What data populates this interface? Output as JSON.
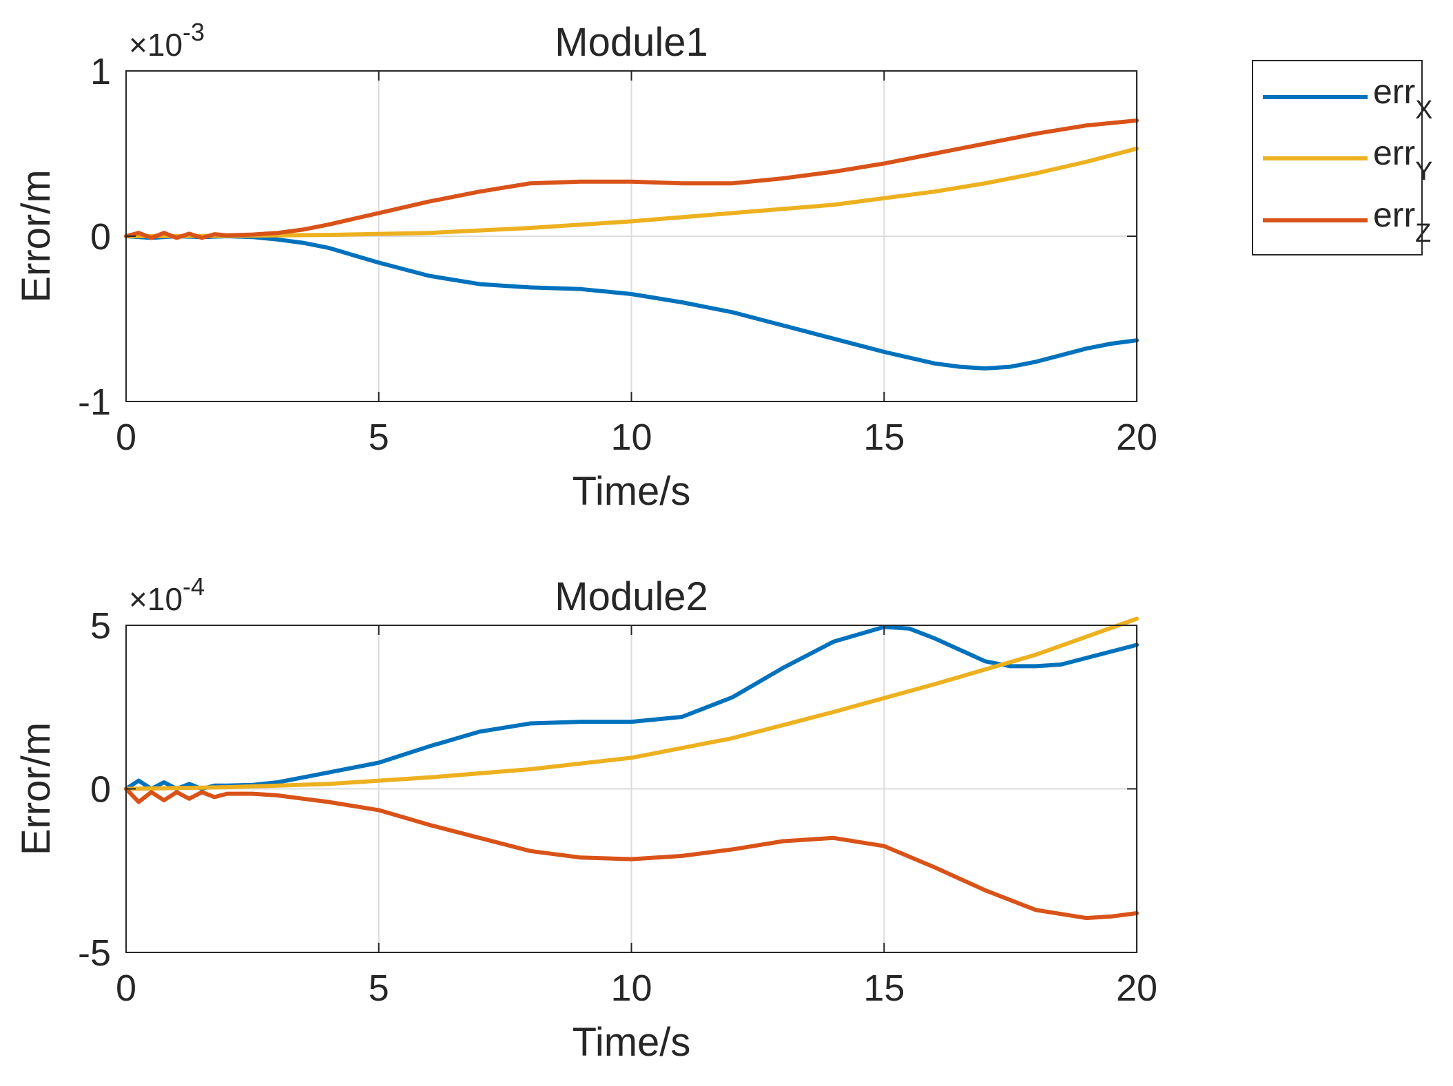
{
  "chart_data": [
    {
      "type": "line",
      "title": "Module1",
      "xlabel": "Time/s",
      "ylabel": "Error/m",
      "exponent_prefix": "×10",
      "exponent": "-3",
      "xlim": [
        0,
        20
      ],
      "ylim": [
        -1,
        1
      ],
      "xticks": [
        0,
        5,
        10,
        15,
        20
      ],
      "yticks": [
        -1,
        0,
        1
      ],
      "xtick_labels": [
        "0",
        "5",
        "10",
        "15",
        "20"
      ],
      "ytick_labels": [
        "-1",
        "0",
        "1"
      ],
      "grid": true,
      "series": [
        {
          "name": "errX",
          "color": "#0072BD",
          "x": [
            0,
            0.5,
            1,
            1.5,
            2,
            2.5,
            3,
            3.5,
            4,
            5,
            6,
            7,
            8,
            9,
            10,
            11,
            12,
            13,
            14,
            15,
            16,
            16.5,
            17,
            17.5,
            18,
            18.5,
            19,
            19.5,
            20
          ],
          "y": [
            0,
            -0.01,
            0,
            -0.005,
            0,
            -0.005,
            -0.02,
            -0.04,
            -0.07,
            -0.16,
            -0.24,
            -0.29,
            -0.31,
            -0.32,
            -0.35,
            -0.4,
            -0.46,
            -0.54,
            -0.62,
            -0.7,
            -0.77,
            -0.79,
            -0.8,
            -0.79,
            -0.76,
            -0.72,
            -0.68,
            -0.65,
            -0.63
          ]
        },
        {
          "name": "errY",
          "color": "#EDB120",
          "x": [
            0,
            2,
            4,
            6,
            8,
            10,
            12,
            14,
            15,
            16,
            17,
            18,
            19,
            20
          ],
          "y": [
            0,
            0.002,
            0.008,
            0.02,
            0.05,
            0.09,
            0.14,
            0.19,
            0.23,
            0.27,
            0.32,
            0.38,
            0.45,
            0.53
          ]
        },
        {
          "name": "errZ",
          "color": "#D95319",
          "x": [
            0,
            0.25,
            0.5,
            0.75,
            1,
            1.25,
            1.5,
            1.75,
            2,
            2.5,
            3,
            3.5,
            4,
            5,
            6,
            7,
            8,
            9,
            10,
            11,
            12,
            13,
            14,
            15,
            16,
            17,
            18,
            19,
            20
          ],
          "y": [
            0,
            0.02,
            -0.01,
            0.02,
            -0.01,
            0.015,
            -0.01,
            0.012,
            0.005,
            0.01,
            0.02,
            0.04,
            0.07,
            0.14,
            0.21,
            0.27,
            0.32,
            0.33,
            0.33,
            0.32,
            0.32,
            0.35,
            0.39,
            0.44,
            0.5,
            0.56,
            0.62,
            0.67,
            0.7
          ]
        }
      ]
    },
    {
      "type": "line",
      "title": "Module2",
      "xlabel": "Time/s",
      "ylabel": "Error/m",
      "exponent_prefix": "×10",
      "exponent": "-4",
      "xlim": [
        0,
        20
      ],
      "ylim": [
        -5,
        5
      ],
      "xticks": [
        0,
        5,
        10,
        15,
        20
      ],
      "yticks": [
        -5,
        0,
        5
      ],
      "xtick_labels": [
        "0",
        "5",
        "10",
        "15",
        "20"
      ],
      "ytick_labels": [
        "-5",
        "0",
        "5"
      ],
      "grid": true,
      "series": [
        {
          "name": "errX",
          "color": "#0072BD",
          "x": [
            0,
            0.25,
            0.5,
            0.75,
            1,
            1.25,
            1.5,
            1.75,
            2,
            2.5,
            3,
            3.5,
            4,
            5,
            6,
            7,
            8,
            9,
            10,
            11,
            12,
            13,
            14,
            15,
            15.5,
            16,
            17,
            17.5,
            18,
            18.5,
            19,
            19.5,
            20
          ],
          "y": [
            0,
            0.25,
            0,
            0.2,
            0,
            0.15,
            0,
            0.1,
            0.1,
            0.12,
            0.2,
            0.35,
            0.5,
            0.8,
            1.3,
            1.75,
            2.0,
            2.05,
            2.05,
            2.2,
            2.8,
            3.7,
            4.5,
            4.95,
            4.9,
            4.6,
            3.9,
            3.75,
            3.75,
            3.8,
            4.0,
            4.2,
            4.4
          ]
        },
        {
          "name": "errY",
          "color": "#EDB120",
          "x": [
            0,
            2,
            4,
            6,
            8,
            10,
            12,
            14,
            16,
            18,
            20
          ],
          "y": [
            0,
            0.05,
            0.15,
            0.35,
            0.6,
            0.95,
            1.55,
            2.35,
            3.2,
            4.1,
            5.2
          ]
        },
        {
          "name": "errZ",
          "color": "#D95319",
          "x": [
            0,
            0.25,
            0.5,
            0.75,
            1,
            1.25,
            1.5,
            1.75,
            2,
            2.5,
            3,
            3.5,
            4,
            5,
            6,
            7,
            8,
            9,
            10,
            11,
            12,
            13,
            14,
            15,
            16,
            17,
            18,
            19,
            19.5,
            20
          ],
          "y": [
            0,
            -0.4,
            -0.1,
            -0.35,
            -0.1,
            -0.3,
            -0.1,
            -0.25,
            -0.15,
            -0.15,
            -0.2,
            -0.3,
            -0.4,
            -0.65,
            -1.1,
            -1.5,
            -1.9,
            -2.1,
            -2.15,
            -2.05,
            -1.85,
            -1.6,
            -1.5,
            -1.75,
            -2.4,
            -3.1,
            -3.7,
            -3.95,
            -3.9,
            -3.8
          ]
        }
      ]
    }
  ],
  "legend": {
    "entries": [
      {
        "base": "err",
        "sub": "X",
        "color": "#0072BD"
      },
      {
        "base": "err",
        "sub": "Y",
        "color": "#EDB120"
      },
      {
        "base": "err",
        "sub": "Z",
        "color": "#D95319"
      }
    ]
  }
}
